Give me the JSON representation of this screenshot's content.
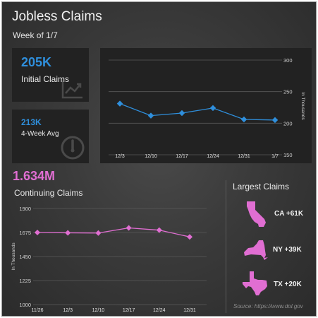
{
  "header": {
    "title": "Jobless Claims",
    "subtitle": "Week of 1/7"
  },
  "initial": {
    "value": "205K",
    "label": "Initial Claims"
  },
  "avg": {
    "value": "213K",
    "label": "4-Week Avg"
  },
  "continuing": {
    "value": "1.634M",
    "label": "Continuing Claims"
  },
  "largest": {
    "title": "Largest Claims",
    "items": [
      {
        "state": "CA",
        "label": "CA +61K",
        "icon": "california-icon"
      },
      {
        "state": "NY",
        "label": "NY +39K",
        "icon": "new-york-icon"
      },
      {
        "state": "TX",
        "label": "TX +20K",
        "icon": "texas-icon"
      }
    ]
  },
  "source": "Source: https://www.dol.gov",
  "colors": {
    "blue": "#2f8fdc",
    "pink": "#e06ed2",
    "background": "#3a3a3a",
    "card": "#222222"
  },
  "chart_data": [
    {
      "type": "line",
      "categories": [
        "12/3",
        "12/10",
        "12/17",
        "12/24",
        "12/31",
        "1/7"
      ],
      "series": [
        {
          "values": [
            231,
            212,
            216,
            224,
            206,
            205
          ]
        }
      ],
      "ylabel": "In Thousands",
      "ylim": [
        150,
        300
      ],
      "yticks": [
        150,
        200,
        250,
        300
      ],
      "grid": true,
      "marker": "circle",
      "color": "#2f8fdc"
    },
    {
      "type": "line",
      "categories": [
        "11/26",
        "12/3",
        "12/10",
        "12/17",
        "12/24",
        "12/31"
      ],
      "series": [
        {
          "values": [
            1675,
            1672,
            1670,
            1718,
            1697,
            1634
          ]
        }
      ],
      "ylabel": "In Thousands",
      "ylim": [
        1000,
        1900
      ],
      "yticks": [
        1000,
        1225,
        1450,
        1675,
        1900
      ],
      "grid": true,
      "marker": "diamond",
      "color": "#e06ed2"
    }
  ]
}
